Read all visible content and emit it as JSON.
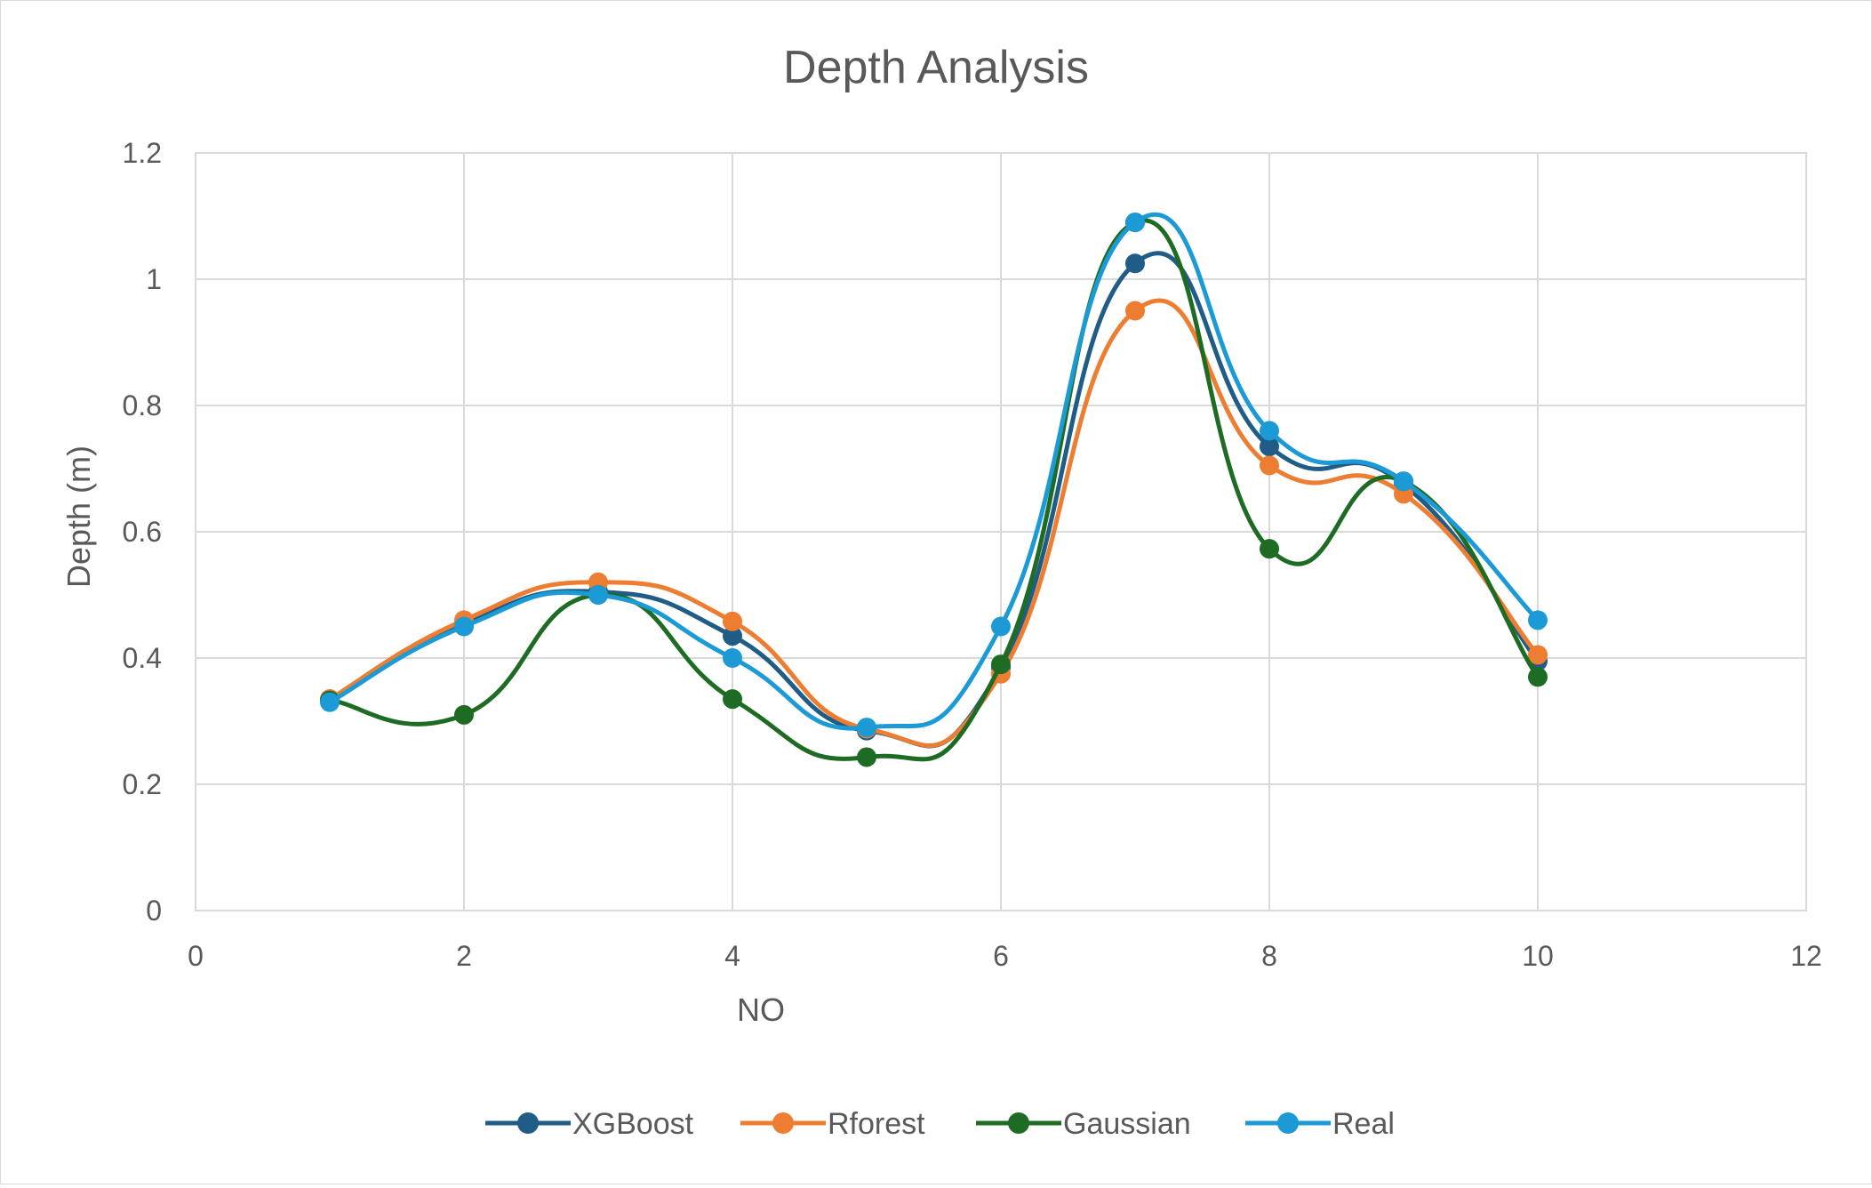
{
  "chart_data": {
    "type": "scatter",
    "title": "Depth Analysis",
    "xlabel": "NO",
    "ylabel": "Depth (m)",
    "xlim": [
      0,
      12
    ],
    "ylim": [
      0,
      1.2
    ],
    "x_ticks": [
      0,
      2,
      4,
      6,
      8,
      10,
      12
    ],
    "y_ticks": [
      0,
      0.2,
      0.4,
      0.6,
      0.8,
      1,
      1.2
    ],
    "grid": true,
    "smooth_lines": true,
    "legend_position": "bottom",
    "x": [
      1,
      2,
      3,
      4,
      5,
      6,
      7,
      8,
      9,
      10
    ],
    "series": [
      {
        "name": "XGBoost",
        "color": "#1f5c86",
        "values": [
          0.335,
          0.455,
          0.505,
          0.435,
          0.285,
          0.385,
          1.025,
          0.735,
          0.675,
          0.395
        ]
      },
      {
        "name": "Rforest",
        "color": "#ed7d31",
        "values": [
          0.335,
          0.46,
          0.52,
          0.458,
          0.288,
          0.375,
          0.95,
          0.705,
          0.66,
          0.405
        ]
      },
      {
        "name": "Gaussian",
        "color": "#1e6b24",
        "values": [
          0.333,
          0.31,
          0.5,
          0.335,
          0.243,
          0.39,
          1.09,
          0.573,
          0.68,
          0.37
        ]
      },
      {
        "name": "Real",
        "color": "#1b9ad6",
        "values": [
          0.33,
          0.45,
          0.5,
          0.4,
          0.29,
          0.45,
          1.09,
          0.76,
          0.68,
          0.46
        ]
      }
    ]
  }
}
